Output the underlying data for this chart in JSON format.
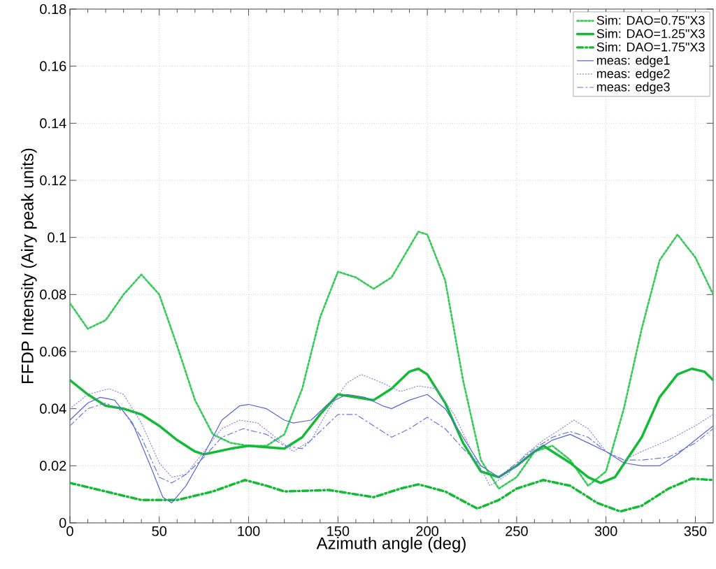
{
  "chart_data": {
    "type": "line",
    "xlabel": "Azimuth angle (deg)",
    "ylabel": "FFDP Intensity (Airy peak units)",
    "xlim": [
      0,
      360
    ],
    "ylim": [
      0,
      0.18
    ],
    "xticks": [
      0,
      50,
      100,
      150,
      200,
      250,
      300,
      350
    ],
    "yticks": [
      0,
      0.02,
      0.04,
      0.06,
      0.08,
      0.1,
      0.12,
      0.14,
      0.16,
      0.18
    ],
    "grid": true,
    "legend": "top right",
    "marker": "none",
    "series": [
      {
        "name": "Sim: DAO=0.75\"X3",
        "color": "#33cc55",
        "line_style": "dotted",
        "x": [
          0,
          10,
          20,
          30,
          40,
          50,
          60,
          70,
          80,
          90,
          100,
          110,
          120,
          130,
          140,
          150,
          160,
          170,
          180,
          195,
          200,
          210,
          220,
          230,
          240,
          250,
          260,
          270,
          280,
          290,
          300,
          310,
          320,
          330,
          340,
          350,
          360
        ],
        "values": [
          0.077,
          0.068,
          0.071,
          0.08,
          0.087,
          0.08,
          0.062,
          0.043,
          0.031,
          0.028,
          0.027,
          0.027,
          0.031,
          0.047,
          0.072,
          0.088,
          0.086,
          0.082,
          0.086,
          0.102,
          0.101,
          0.085,
          0.05,
          0.022,
          0.012,
          0.016,
          0.025,
          0.027,
          0.022,
          0.013,
          0.018,
          0.04,
          0.068,
          0.092,
          0.101,
          0.093,
          0.08
        ]
      },
      {
        "name": "Sim: DAO=1.25\"X3",
        "color": "#11bb33",
        "line_style": "solid",
        "x": [
          0,
          10,
          20,
          30,
          40,
          50,
          60,
          70,
          75,
          90,
          100,
          120,
          130,
          140,
          150,
          160,
          170,
          180,
          190,
          195,
          200,
          210,
          220,
          230,
          240,
          250,
          260,
          265,
          270,
          280,
          290,
          297,
          305,
          320,
          330,
          340,
          348,
          355,
          360
        ],
        "values": [
          0.05,
          0.045,
          0.041,
          0.04,
          0.038,
          0.034,
          0.029,
          0.025,
          0.024,
          0.026,
          0.027,
          0.026,
          0.03,
          0.038,
          0.045,
          0.044,
          0.043,
          0.047,
          0.053,
          0.054,
          0.052,
          0.042,
          0.028,
          0.018,
          0.016,
          0.02,
          0.025,
          0.027,
          0.025,
          0.021,
          0.016,
          0.014,
          0.016,
          0.03,
          0.044,
          0.052,
          0.054,
          0.053,
          0.05
        ]
      },
      {
        "name": "Sim: DAO=1.75\"X3",
        "color": "#11bb33",
        "line_style": "dashdot",
        "x": [
          0,
          20,
          40,
          60,
          80,
          98,
          110,
          120,
          145,
          160,
          170,
          185,
          195,
          210,
          228,
          240,
          250,
          265,
          280,
          295,
          308,
          320,
          335,
          348,
          360
        ],
        "values": [
          0.014,
          0.011,
          0.008,
          0.008,
          0.011,
          0.015,
          0.013,
          0.011,
          0.0115,
          0.01,
          0.009,
          0.012,
          0.0135,
          0.011,
          0.005,
          0.008,
          0.012,
          0.015,
          0.013,
          0.007,
          0.004,
          0.006,
          0.012,
          0.0155,
          0.015
        ]
      },
      {
        "name": "meas: edge1",
        "color": "#5566dd",
        "line_style": "solid",
        "x": [
          0,
          10,
          17,
          25,
          35,
          45,
          52,
          57,
          65,
          75,
          85,
          95,
          100,
          110,
          120,
          125,
          135,
          145,
          155,
          165,
          175,
          180,
          190,
          200,
          210,
          220,
          230,
          240,
          250,
          260,
          270,
          280,
          290,
          300,
          310,
          320,
          330,
          340,
          350,
          360
        ],
        "values": [
          0.036,
          0.042,
          0.044,
          0.043,
          0.035,
          0.02,
          0.009,
          0.007,
          0.013,
          0.024,
          0.036,
          0.041,
          0.0415,
          0.04,
          0.036,
          0.035,
          0.036,
          0.042,
          0.045,
          0.044,
          0.041,
          0.04,
          0.043,
          0.045,
          0.04,
          0.03,
          0.02,
          0.016,
          0.02,
          0.025,
          0.029,
          0.031,
          0.028,
          0.025,
          0.021,
          0.02,
          0.02,
          0.024,
          0.029,
          0.034
        ]
      },
      {
        "name": "meas: edge2",
        "color": "#8888ee",
        "line_style": "dotted",
        "x": [
          0,
          10,
          22,
          30,
          40,
          50,
          57,
          65,
          75,
          85,
          95,
          105,
          115,
          125,
          135,
          145,
          155,
          163,
          175,
          185,
          195,
          205,
          215,
          225,
          235,
          245,
          255,
          265,
          275,
          282,
          290,
          300,
          310,
          320,
          335,
          350,
          360
        ],
        "values": [
          0.04,
          0.045,
          0.047,
          0.045,
          0.035,
          0.021,
          0.016,
          0.017,
          0.025,
          0.033,
          0.036,
          0.035,
          0.03,
          0.025,
          0.029,
          0.04,
          0.049,
          0.052,
          0.049,
          0.046,
          0.048,
          0.047,
          0.038,
          0.025,
          0.013,
          0.017,
          0.024,
          0.029,
          0.033,
          0.036,
          0.033,
          0.025,
          0.022,
          0.025,
          0.029,
          0.034,
          0.038
        ]
      },
      {
        "name": "meas: edge3",
        "color": "#6677dd",
        "line_style": "dashdot",
        "x": [
          0,
          10,
          20,
          30,
          40,
          50,
          57,
          65,
          75,
          85,
          97,
          110,
          120,
          130,
          140,
          150,
          160,
          170,
          180,
          190,
          200,
          210,
          220,
          230,
          240,
          250,
          260,
          270,
          280,
          290,
          300,
          310,
          320,
          335,
          350,
          360
        ],
        "values": [
          0.034,
          0.04,
          0.042,
          0.039,
          0.03,
          0.016,
          0.014,
          0.017,
          0.023,
          0.03,
          0.033,
          0.031,
          0.027,
          0.026,
          0.032,
          0.038,
          0.038,
          0.034,
          0.03,
          0.033,
          0.037,
          0.033,
          0.026,
          0.02,
          0.016,
          0.021,
          0.026,
          0.03,
          0.032,
          0.03,
          0.025,
          0.022,
          0.022,
          0.023,
          0.028,
          0.033
        ]
      }
    ]
  }
}
